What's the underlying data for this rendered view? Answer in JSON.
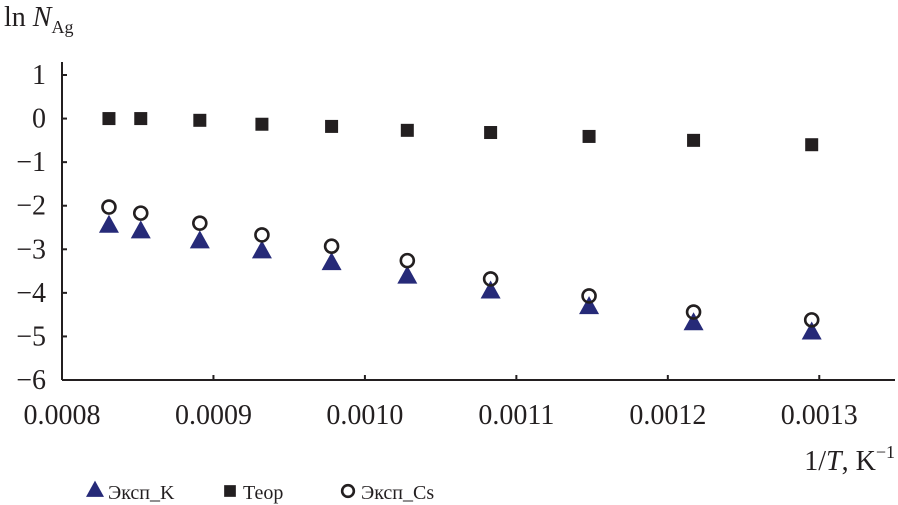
{
  "chart_data": {
    "type": "scatter",
    "title": "",
    "ylabel": {
      "prefix": "ln ",
      "var": "N",
      "sub": "Ag"
    },
    "xlabel": {
      "prefix": "1/",
      "var": "T",
      "suffix": ", K",
      "sup": "−1"
    },
    "xlim": [
      0.0008,
      0.00135
    ],
    "ylim": [
      -6,
      1
    ],
    "x_ticks": [
      0.0008,
      0.0009,
      0.001,
      0.0011,
      0.0012,
      0.0013
    ],
    "x_tick_labels": [
      "0.0008",
      "0.0009",
      "0.0010",
      "0.0011",
      "0.0012",
      "0.0013"
    ],
    "y_ticks": [
      1,
      0,
      -1,
      -2,
      -3,
      -4,
      -5,
      -6
    ],
    "y_tick_labels": [
      "1",
      "0",
      "−1",
      "−2",
      "−3",
      "−4",
      "−5",
      "−6"
    ],
    "grid": false,
    "legend_position": "bottom-left",
    "x": [
      0.000831,
      0.000852,
      0.000891,
      0.000932,
      0.000978,
      0.001028,
      0.001083,
      0.001148,
      0.001217,
      0.001295
    ],
    "series": [
      {
        "name": "Эксп_K",
        "marker": "triangle",
        "color": "#262a78",
        "values": [
          -2.47,
          -2.6,
          -2.83,
          -3.06,
          -3.33,
          -3.64,
          -3.98,
          -4.34,
          -4.71,
          -4.92
        ]
      },
      {
        "name": "Теор",
        "marker": "square",
        "color": "#231f20",
        "values": [
          0,
          0,
          -0.04,
          -0.13,
          -0.18,
          -0.27,
          -0.32,
          -0.41,
          -0.5,
          -0.6
        ]
      },
      {
        "name": "Эксп_Cs",
        "marker": "circle",
        "color": "#231f20",
        "values": [
          -2.03,
          -2.17,
          -2.4,
          -2.67,
          -2.93,
          -3.26,
          -3.68,
          -4.07,
          -4.44,
          -4.62
        ]
      }
    ]
  }
}
